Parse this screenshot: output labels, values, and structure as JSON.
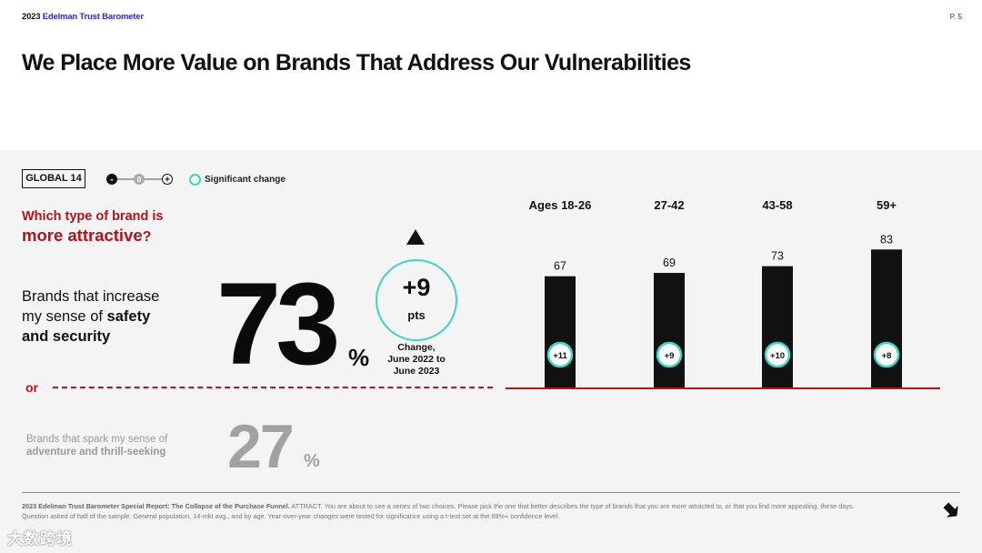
{
  "header": {
    "brand_year": "2023",
    "brand_name": "Edelman Trust Barometer",
    "page_number": "P. 5",
    "title": "We Place More Value on Brands That Address Our Vulnerabilities"
  },
  "legend": {
    "global_label": "GLOBAL 14",
    "minus": "-",
    "zero": "0",
    "plus": "+",
    "significant_change": "Significant change",
    "significant_color": "#3fd4c8"
  },
  "question": {
    "line1": "Which type of brand is",
    "line2": "more attractive",
    "mark": "?"
  },
  "option_a": {
    "line1": "Brands that increase",
    "line2_prefix": "my sense of ",
    "line2_bold": "safety",
    "line3": "and security",
    "value": "73",
    "unit": "%"
  },
  "change": {
    "value": "+9",
    "unit": "pts",
    "caption_line1": "Change,",
    "caption_line2": "June 2022 to",
    "caption_line3": "June 2023"
  },
  "divider": {
    "or_label": "or"
  },
  "option_b": {
    "line1": "Brands that spark my sense of",
    "line2": "adventure and thrill-seeking",
    "value": "27",
    "unit": "%"
  },
  "chart_data": {
    "type": "bar",
    "title": "",
    "categories": [
      "Ages 18-26",
      "27-42",
      "43-58",
      "59+"
    ],
    "values": [
      67,
      69,
      73,
      83
    ],
    "changes": [
      "+11",
      "+9",
      "+10",
      "+8"
    ],
    "ylim": [
      0,
      100
    ],
    "xlabel": "",
    "ylabel": "",
    "bar_color": "#111111",
    "baseline_color": "#c0141d",
    "change_circle_color": "#3fd4c8"
  },
  "footer": {
    "source_bold": "2023 Edelman Trust Barometer Special Report: The Collapse of the Purchase Funnel.",
    "source_text": " ATTRACT. You are about to see a series of two choices. Please pick the one that better describes the type of brands that you are more attracted to, or that you find more appealing, these days. Question asked of half of the sample. General population, 14-mkt avg., and by age. Year-over-year changes were tested for significance using a t-test set at the 99%+ confidence level.",
    "watermark": "大数跨境"
  }
}
